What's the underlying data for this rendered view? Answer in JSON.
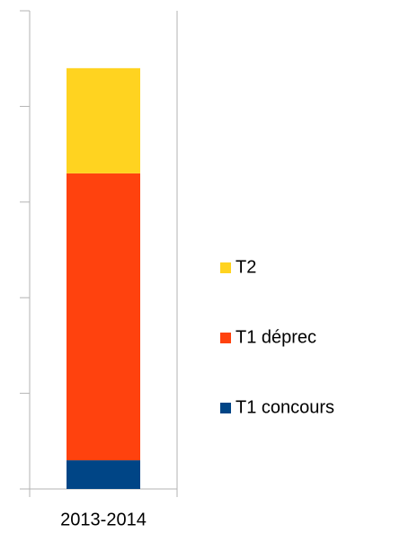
{
  "chart_data": {
    "type": "stacked_bar",
    "categories": [
      "2013-2014"
    ],
    "series": [
      {
        "name": "T1 concours",
        "color": "#004586",
        "values": [
          0.3
        ]
      },
      {
        "name": "T1 déprec",
        "color": "#ff420e",
        "values": [
          3.0
        ]
      },
      {
        "name": "T2",
        "color": "#ffd320",
        "values": [
          1.1
        ]
      }
    ],
    "ylim": [
      0,
      5
    ],
    "yticks": [
      0,
      1,
      2,
      3,
      4,
      5
    ],
    "legend": "right"
  }
}
